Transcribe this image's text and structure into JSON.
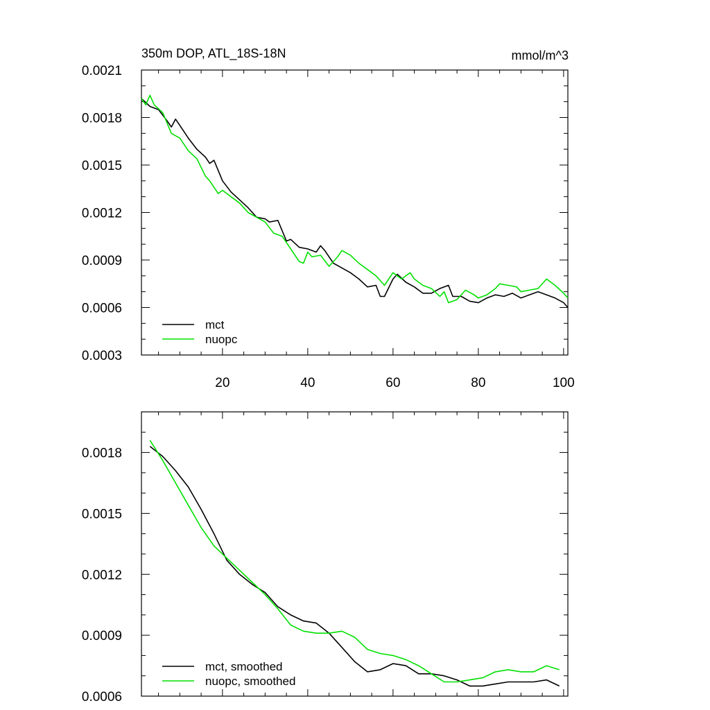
{
  "chart_data": [
    {
      "type": "line",
      "title": "350m DOP, ATL_18S-18N",
      "units": "mmol/m^3",
      "xlabel": "",
      "ylabel": "",
      "xlim": [
        1,
        101
      ],
      "ylim": [
        0.0003,
        0.0021
      ],
      "x_ticks": [
        20,
        40,
        60,
        80,
        100
      ],
      "y_ticks": [
        "0.0003",
        "0.0006",
        "0.0009",
        "0.0012",
        "0.0015",
        "0.0018",
        "0.0021"
      ],
      "legend_position": "bottom-left",
      "series": [
        {
          "name": "mct",
          "color": "#000000",
          "points": [
            [
              1,
              0.00192
            ],
            [
              3,
              0.00187
            ],
            [
              5,
              0.00185
            ],
            [
              7,
              0.00178
            ],
            [
              8,
              0.00174
            ],
            [
              9,
              0.00179
            ],
            [
              10,
              0.00175
            ],
            [
              12,
              0.00167
            ],
            [
              14,
              0.0016
            ],
            [
              16,
              0.00155
            ],
            [
              17,
              0.00151
            ],
            [
              18,
              0.00153
            ],
            [
              20,
              0.0014
            ],
            [
              22,
              0.00133
            ],
            [
              24,
              0.00128
            ],
            [
              26,
              0.00123
            ],
            [
              28,
              0.00117
            ],
            [
              30,
              0.00116
            ],
            [
              31,
              0.00114
            ],
            [
              33,
              0.00115
            ],
            [
              35,
              0.00102
            ],
            [
              36,
              0.00103
            ],
            [
              38,
              0.00098
            ],
            [
              40,
              0.00097
            ],
            [
              42,
              0.00095
            ],
            [
              43,
              0.00099
            ],
            [
              44,
              0.00096
            ],
            [
              46,
              0.00088
            ],
            [
              48,
              0.00085
            ],
            [
              50,
              0.00082
            ],
            [
              52,
              0.00078
            ],
            [
              54,
              0.00073
            ],
            [
              56,
              0.00074
            ],
            [
              57,
              0.00067
            ],
            [
              58,
              0.00067
            ],
            [
              60,
              0.00078
            ],
            [
              61,
              0.00081
            ],
            [
              63,
              0.00076
            ],
            [
              65,
              0.00073
            ],
            [
              67,
              0.00069
            ],
            [
              69,
              0.00069
            ],
            [
              71,
              0.00072
            ],
            [
              73,
              0.00074
            ],
            [
              74,
              0.00067
            ],
            [
              76,
              0.00067
            ],
            [
              78,
              0.00064
            ],
            [
              80,
              0.00063
            ],
            [
              82,
              0.00066
            ],
            [
              84,
              0.00068
            ],
            [
              86,
              0.00067
            ],
            [
              88,
              0.00069
            ],
            [
              90,
              0.00066
            ],
            [
              92,
              0.00068
            ],
            [
              94,
              0.0007
            ],
            [
              96,
              0.00068
            ],
            [
              98,
              0.00066
            ],
            [
              100,
              0.00063
            ],
            [
              101,
              0.0006
            ]
          ]
        },
        {
          "name": "nuopc",
          "color": "#00e000",
          "points": [
            [
              1,
              0.00192
            ],
            [
              2,
              0.00188
            ],
            [
              3,
              0.00194
            ],
            [
              4,
              0.00188
            ],
            [
              6,
              0.00183
            ],
            [
              8,
              0.0017
            ],
            [
              10,
              0.00167
            ],
            [
              12,
              0.00159
            ],
            [
              14,
              0.00154
            ],
            [
              16,
              0.00143
            ],
            [
              17,
              0.0014
            ],
            [
              19,
              0.00132
            ],
            [
              20,
              0.00134
            ],
            [
              22,
              0.0013
            ],
            [
              24,
              0.00126
            ],
            [
              26,
              0.0012
            ],
            [
              28,
              0.00117
            ],
            [
              30,
              0.00114
            ],
            [
              32,
              0.00107
            ],
            [
              34,
              0.00105
            ],
            [
              36,
              0.00097
            ],
            [
              38,
              0.00089
            ],
            [
              39,
              0.00088
            ],
            [
              40,
              0.00095
            ],
            [
              41,
              0.00092
            ],
            [
              43,
              0.00093
            ],
            [
              45,
              0.00086
            ],
            [
              47,
              0.00092
            ],
            [
              48,
              0.00096
            ],
            [
              50,
              0.00093
            ],
            [
              52,
              0.00088
            ],
            [
              54,
              0.00084
            ],
            [
              56,
              0.0008
            ],
            [
              58,
              0.00074
            ],
            [
              60,
              0.00082
            ],
            [
              62,
              0.00078
            ],
            [
              64,
              0.00082
            ],
            [
              65,
              0.00078
            ],
            [
              67,
              0.00074
            ],
            [
              69,
              0.00072
            ],
            [
              71,
              0.00067
            ],
            [
              72,
              0.0007
            ],
            [
              73,
              0.00063
            ],
            [
              75,
              0.00065
            ],
            [
              77,
              0.00071
            ],
            [
              79,
              0.00068
            ],
            [
              80,
              0.00066
            ],
            [
              82,
              0.00068
            ],
            [
              84,
              0.00072
            ],
            [
              85,
              0.00075
            ],
            [
              87,
              0.00074
            ],
            [
              89,
              0.00073
            ],
            [
              90,
              0.0007
            ],
            [
              92,
              0.00071
            ],
            [
              94,
              0.00072
            ],
            [
              96,
              0.00078
            ],
            [
              98,
              0.00074
            ],
            [
              100,
              0.00069
            ],
            [
              101,
              0.00066
            ]
          ]
        }
      ]
    },
    {
      "type": "line",
      "title": "",
      "units": "",
      "xlabel": "",
      "ylabel": "",
      "xlim": [
        1,
        101
      ],
      "ylim": [
        0.0006,
        0.002
      ],
      "x_ticks": [
        20,
        40,
        60,
        80,
        100
      ],
      "y_ticks": [
        "0.0006",
        "0.0009",
        "0.0012",
        "0.0015",
        "0.0018"
      ],
      "legend_position": "bottom-left",
      "series": [
        {
          "name": "mct, smoothed",
          "color": "#000000",
          "points": [
            [
              3,
              0.00183
            ],
            [
              6,
              0.00178
            ],
            [
              9,
              0.00171
            ],
            [
              12,
              0.00163
            ],
            [
              15,
              0.00152
            ],
            [
              18,
              0.0014
            ],
            [
              21,
              0.00127
            ],
            [
              24,
              0.0012
            ],
            [
              27,
              0.00115
            ],
            [
              30,
              0.00111
            ],
            [
              33,
              0.00104
            ],
            [
              36,
              0.001
            ],
            [
              39,
              0.00097
            ],
            [
              42,
              0.00096
            ],
            [
              45,
              0.00091
            ],
            [
              48,
              0.00084
            ],
            [
              51,
              0.00077
            ],
            [
              54,
              0.00072
            ],
            [
              57,
              0.00073
            ],
            [
              60,
              0.00076
            ],
            [
              63,
              0.00075
            ],
            [
              66,
              0.00071
            ],
            [
              69,
              0.00071
            ],
            [
              72,
              0.0007
            ],
            [
              75,
              0.00068
            ],
            [
              78,
              0.00065
            ],
            [
              81,
              0.00065
            ],
            [
              84,
              0.00066
            ],
            [
              87,
              0.00067
            ],
            [
              90,
              0.00067
            ],
            [
              93,
              0.00067
            ],
            [
              96,
              0.00068
            ],
            [
              99,
              0.00065
            ]
          ]
        },
        {
          "name": "nuopc, smoothed",
          "color": "#00e000",
          "points": [
            [
              3,
              0.00186
            ],
            [
              6,
              0.00176
            ],
            [
              9,
              0.00165
            ],
            [
              12,
              0.00154
            ],
            [
              15,
              0.00143
            ],
            [
              18,
              0.00134
            ],
            [
              21,
              0.00128
            ],
            [
              24,
              0.00122
            ],
            [
              27,
              0.00116
            ],
            [
              30,
              0.0011
            ],
            [
              33,
              0.00103
            ],
            [
              36,
              0.00095
            ],
            [
              39,
              0.00092
            ],
            [
              42,
              0.00091
            ],
            [
              45,
              0.00091
            ],
            [
              48,
              0.00092
            ],
            [
              51,
              0.00089
            ],
            [
              54,
              0.00083
            ],
            [
              57,
              0.00081
            ],
            [
              60,
              0.0008
            ],
            [
              63,
              0.00078
            ],
            [
              66,
              0.00075
            ],
            [
              69,
              0.00071
            ],
            [
              72,
              0.00067
            ],
            [
              75,
              0.00067
            ],
            [
              78,
              0.00068
            ],
            [
              81,
              0.00069
            ],
            [
              84,
              0.00072
            ],
            [
              87,
              0.00073
            ],
            [
              90,
              0.00072
            ],
            [
              93,
              0.00072
            ],
            [
              96,
              0.00075
            ],
            [
              99,
              0.00073
            ]
          ]
        }
      ]
    }
  ]
}
